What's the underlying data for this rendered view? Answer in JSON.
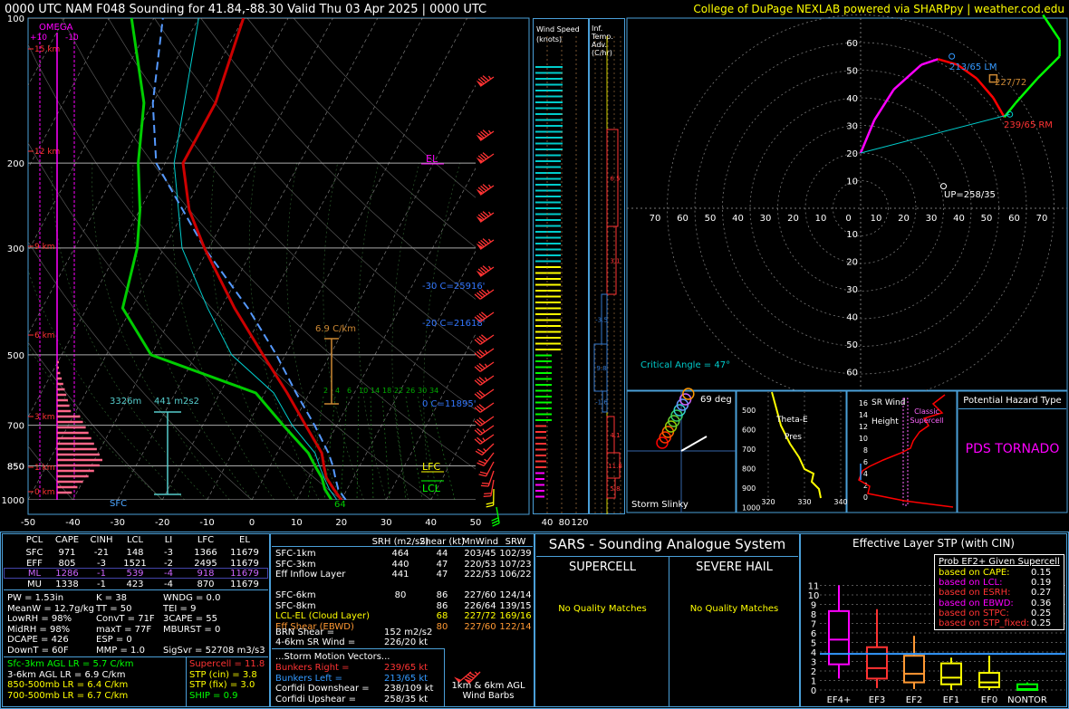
{
  "header": {
    "title": "0000 UTC NAM F048 Sounding for 41.84,-88.30 Valid  Thu 03 Apr 2025 | 0000 UTC",
    "credit": "College of DuPage NEXLAB powered via SHARPpy | weather.cod.edu"
  },
  "colors": {
    "temp": "#cc0000",
    "dewpoint": "#00cc00",
    "virtual_temp": "#ff3333",
    "wetbulb": "#00cccc",
    "parcel": "#5599ff",
    "panel_border": "#4a9fd8",
    "magenta": "#ff00ff",
    "yellow": "#ffff00"
  },
  "skewt": {
    "pressure_labels": [
      "100",
      "200",
      "300",
      "500",
      "700",
      "850",
      "1000"
    ],
    "temp_labels": [
      "-50",
      "-40",
      "-30",
      "-20",
      "-10",
      "0",
      "10",
      "20",
      "30",
      "40",
      "50"
    ],
    "height_labels": [
      "15 km",
      "12 km",
      "9 km",
      "6 km",
      "3 km",
      "1 km",
      "0 km"
    ],
    "omega_title": "OMEGA",
    "omega_scale": [
      "+10",
      "-10"
    ],
    "annotations": {
      "el": "EL",
      "lfc": "LFC",
      "lcl": "LCL",
      "sfc": "SFC",
      "iso30": "-30 C=25916'",
      "iso20": "-20 C=21618'",
      "iso0": "0 C=11895'",
      "lapse": "6.9 C/km",
      "eff_depth": "3326m",
      "eff_srh": "441 m2s2",
      "surface_dewpoint": "64",
      "mix_ratios": [
        "2",
        "4",
        "6",
        "10",
        "14",
        "18",
        "22",
        "26",
        "30",
        "34"
      ]
    },
    "chart_data": {
      "type": "line",
      "title": "",
      "xlabel": "",
      "ylabel": "",
      "x_units": "deg C (skewed)",
      "y_axis": "pressure hPa (log)",
      "xlim": [
        -50,
        50
      ],
      "ylim": [
        1000,
        100
      ],
      "series": [
        {
          "name": "",
          "key": "temperature",
          "points": [
            [
              1000,
              20
            ],
            [
              950,
              17
            ],
            [
              900,
              14
            ],
            [
              850,
              12
            ],
            [
              800,
              10
            ],
            [
              700,
              3
            ],
            [
              600,
              -5
            ],
            [
              500,
              -15
            ],
            [
              400,
              -27
            ],
            [
              300,
              -41
            ],
            [
              250,
              -49
            ],
            [
              200,
              -56
            ],
            [
              150,
              -56
            ],
            [
              100,
              -60
            ]
          ]
        },
        {
          "name": "",
          "key": "dewpoint",
          "points": [
            [
              1000,
              17.8
            ],
            [
              950,
              15
            ],
            [
              900,
              13
            ],
            [
              850,
              10
            ],
            [
              800,
              7
            ],
            [
              700,
              -2
            ],
            [
              600,
              -12
            ],
            [
              500,
              -40
            ],
            [
              400,
              -52
            ],
            [
              300,
              -56
            ],
            [
              250,
              -60
            ],
            [
              200,
              -66
            ],
            [
              150,
              -72
            ],
            [
              100,
              -85
            ]
          ]
        },
        {
          "name": "",
          "key": "parcel",
          "points": [
            [
              1000,
              21
            ],
            [
              950,
              18
            ],
            [
              900,
              16
            ],
            [
              850,
              14
            ],
            [
              800,
              11.5
            ],
            [
              700,
              5
            ],
            [
              600,
              -3
            ],
            [
              500,
              -12
            ],
            [
              400,
              -24
            ],
            [
              300,
              -41
            ],
            [
              200,
              -62
            ],
            [
              150,
              -70
            ],
            [
              100,
              -78
            ]
          ]
        },
        {
          "name": "",
          "key": "wetbulb",
          "points": [
            [
              1000,
              19
            ],
            [
              950,
              16
            ],
            [
              900,
              13.5
            ],
            [
              850,
              11
            ],
            [
              800,
              8.5
            ],
            [
              700,
              0
            ],
            [
              600,
              -8
            ],
            [
              500,
              -22
            ],
            [
              400,
              -33
            ],
            [
              300,
              -46
            ],
            [
              200,
              -58
            ],
            [
              100,
              -70
            ]
          ]
        }
      ]
    }
  },
  "wind_speed": {
    "title": "Wind Speed (knots)",
    "ticks": [
      "40",
      "80",
      "120"
    ]
  },
  "inf_temp": {
    "title": "Inf. Temp. Adv. (C/hr)",
    "values": [
      "6.5",
      "3.1",
      "-3.5",
      "9.8",
      "-1.6",
      "4.1",
      "11.8",
      "5.8"
    ]
  },
  "hodograph": {
    "ring_labels": [
      "60",
      "50",
      "40",
      "30",
      "20",
      "10"
    ],
    "axis_labels": [
      "70",
      "60",
      "50",
      "40",
      "30",
      "20",
      "10",
      "0",
      "10",
      "20",
      "30",
      "40",
      "50",
      "60",
      "70"
    ],
    "labels": {
      "lm": "213/65 LM",
      "rm": "239/65 RM",
      "mean": "227/72",
      "up": "UP=258/35",
      "critical": "Critical Angle = 47°"
    }
  },
  "storm_slinky": {
    "title": "Storm Slinky",
    "angle": "69 deg"
  },
  "theta_e": {
    "title": "Theta-E",
    "subtitle": "Pres",
    "y_labels": [
      "500",
      "600",
      "700",
      "800",
      "900",
      "1000"
    ],
    "x_labels": [
      "320",
      "330",
      "340"
    ]
  },
  "sr_wind": {
    "title": "SR Wind",
    "subtitle": "Height",
    "label": "Classic Supercell",
    "y_labels": [
      "16",
      "14",
      "12",
      "10",
      "8",
      "6",
      "4",
      "2",
      "0"
    ]
  },
  "hazard": {
    "title": "Potential Hazard Type",
    "value": "PDS TORNADO"
  },
  "parcel_table": {
    "headers": [
      "PCL",
      "CAPE",
      "CINH",
      "LCL",
      "LI",
      "LFC",
      "EL"
    ],
    "rows": [
      [
        "SFC",
        "971",
        "-21",
        "148",
        "-3",
        "1366",
        "11679"
      ],
      [
        "EFF",
        "805",
        "-3",
        "1521",
        "-2",
        "2495",
        "11679"
      ],
      [
        "ML",
        "1286",
        "-1",
        "539",
        "-4",
        "918",
        "11679"
      ],
      [
        "MU",
        "1338",
        "-1",
        "423",
        "-4",
        "870",
        "11679"
      ]
    ]
  },
  "indices": {
    "col1": [
      "PW = 1.53in",
      "MeanW = 12.7g/kg",
      "LowRH = 98%",
      "MidRH = 98%",
      "DCAPE = 426",
      "DownT = 60F"
    ],
    "col2": [
      "K = 38",
      "TT = 50",
      "ConvT = 71F",
      "maxT = 77F",
      "ESP = 0",
      "MMP = 1.0"
    ],
    "col3": [
      "WNDG = 0.0",
      "TEI = 9",
      "3CAPE = 55",
      "MBURST = 0",
      "",
      ""
    ],
    "sigsvr": "SigSvr = 52708 m3/s3"
  },
  "lapse_rates": [
    "Sfc-3km AGL LR = 5.7 C/km",
    "3-6km AGL LR = 6.9 C/km",
    "850-500mb LR = 6.4 C/km",
    "700-500mb LR = 6.7 C/km"
  ],
  "composites": [
    "Supercell = 11.8",
    "STP (cin) = 3.8",
    "STP (fix) = 3.0",
    "SHIP = 0.9"
  ],
  "kinematics": {
    "headers": [
      "SRH (m2/s2)",
      "Shear (kt)",
      "MnWind",
      "SRW"
    ],
    "rows": [
      [
        "SFC-1km",
        "464",
        "44",
        "203/45",
        "102/39"
      ],
      [
        "SFC-3km",
        "440",
        "47",
        "220/53",
        "107/23"
      ],
      [
        "Eff Inflow Layer",
        "441",
        "47",
        "222/53",
        "106/22"
      ],
      [
        "",
        "",
        "",
        "",
        ""
      ],
      [
        "SFC-6km",
        "80",
        "86",
        "227/60",
        "124/14"
      ],
      [
        "SFC-8km",
        "",
        "86",
        "226/64",
        "139/15"
      ],
      [
        "LCL-EL (Cloud Layer)",
        "",
        "68",
        "227/72",
        "169/16"
      ],
      [
        "Eff Shear (EBWD)",
        "",
        "80",
        "227/60",
        "122/14"
      ]
    ],
    "brn": [
      "BRN Shear =",
      "152 m2/s2"
    ],
    "srwind": [
      "4-6km SR Wind =",
      "226/20 kt"
    ],
    "motion_title": "...Storm Motion Vectors...",
    "motions": [
      [
        "Bunkers Right =",
        "239/65 kt"
      ],
      [
        "Bunkers Left =",
        "213/65 kt"
      ],
      [
        "Corfidi Downshear =",
        "238/109 kt"
      ],
      [
        "Corfidi Upshear =",
        "258/35 kt"
      ]
    ],
    "barb_label": "1km & 6km AGL Wind Barbs"
  },
  "sars": {
    "title": "SARS - Sounding Analogue System",
    "supercell": "SUPERCELL",
    "hail": "SEVERE HAIL",
    "sup_result": "No Quality Matches",
    "hail_result": "No Quality Matches"
  },
  "stp": {
    "title": "Effective Layer STP (with CIN)",
    "y_labels": [
      "0",
      "1",
      "2",
      "3",
      "4",
      "5",
      "6",
      "7",
      "8",
      "9",
      "10",
      "11"
    ],
    "categories": [
      "EF4+",
      "EF3",
      "EF2",
      "EF1",
      "EF0",
      "NONTOR"
    ],
    "prob_title": "Prob EF2+ Given Supercell",
    "probs": [
      [
        "based on CAPE:",
        "0.15"
      ],
      [
        "based on LCL:",
        "0.19"
      ],
      [
        "based on ESRH:",
        "0.27"
      ],
      [
        "based on EBWD:",
        "0.36"
      ],
      [
        "based on STPC:",
        "0.25"
      ],
      [
        "based on STP_fixed:",
        "0.25"
      ]
    ],
    "chart_data": {
      "type": "bar",
      "categories": [
        "EF4+",
        "EF3",
        "EF2",
        "EF1",
        "EF0",
        "NONTOR"
      ],
      "boxes": [
        {
          "whisker_low": 1.2,
          "q1": 2.7,
          "median": 5.3,
          "q3": 8.3,
          "whisker_high": 11.0
        },
        {
          "whisker_low": 0.2,
          "q1": 1.2,
          "median": 2.3,
          "q3": 4.5,
          "whisker_high": 8.5
        },
        {
          "whisker_low": 0.1,
          "q1": 0.8,
          "median": 1.7,
          "q3": 3.6,
          "whisker_high": 5.7
        },
        {
          "whisker_low": 0.0,
          "q1": 0.6,
          "median": 1.3,
          "q3": 2.8,
          "whisker_high": 3.4
        },
        {
          "whisker_low": 0.0,
          "q1": 0.3,
          "median": 0.8,
          "q3": 1.8,
          "whisker_high": 3.6
        },
        {
          "whisker_low": 0.0,
          "q1": 0.0,
          "median": 0.1,
          "q3": 0.6,
          "whisker_high": 0.8
        }
      ],
      "current_value": 3.8,
      "ylim": [
        0,
        11.5
      ]
    }
  }
}
